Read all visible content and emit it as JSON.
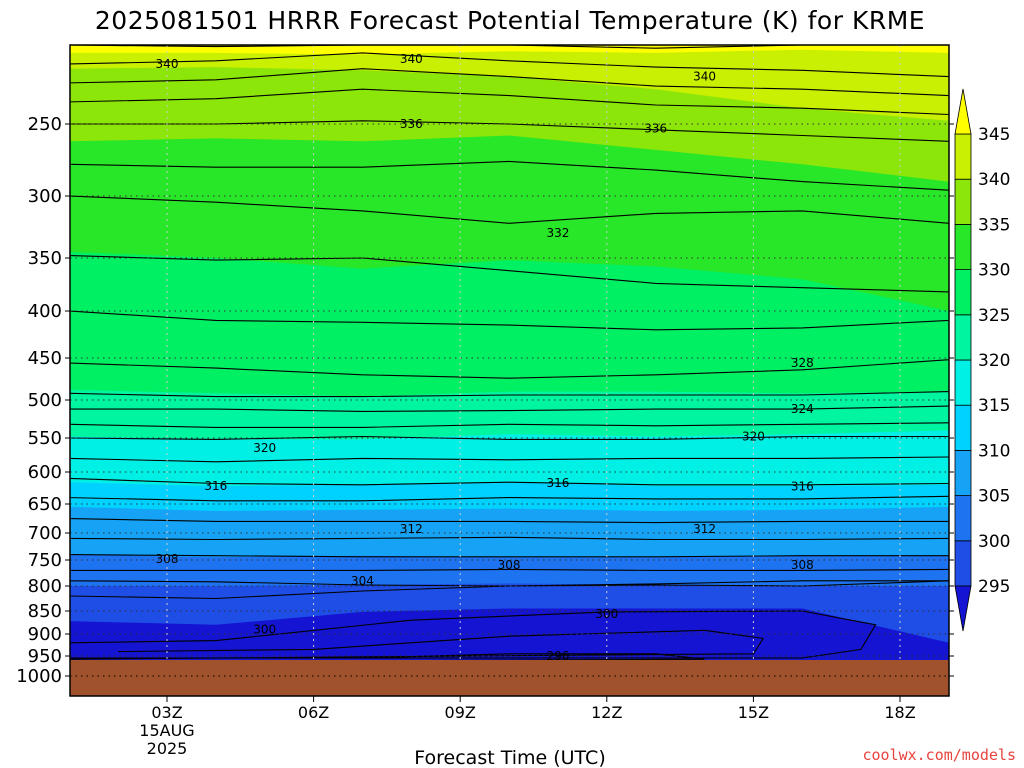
{
  "title": "2025081501 HRRR Forecast Potential Temperature (K) for KRME",
  "xlabel": "Forecast Time (UTC)",
  "credit": "coolwx.com/models",
  "colors": {
    "ground": "#a0522d",
    "bands": [
      "#1414d2",
      "#1e4ee6",
      "#1e74f0",
      "#16a2f5",
      "#00d2ff",
      "#00f0e6",
      "#00f5a0",
      "#00f064",
      "#28e628",
      "#8ce60a",
      "#c8f000",
      "#ffff00"
    ]
  },
  "chart_data": {
    "type": "contour",
    "title": "2025081501 HRRR Forecast Potential Temperature (K) for KRME",
    "xlabel": "Forecast Time (UTC)",
    "ylabel": "",
    "x_ticks": [
      "03Z",
      "06Z",
      "09Z",
      "12Z",
      "15Z",
      "18Z"
    ],
    "x_date_label": [
      "15AUG",
      "2025"
    ],
    "y_ticks": [
      250,
      300,
      350,
      400,
      450,
      500,
      550,
      600,
      650,
      700,
      750,
      800,
      850,
      900,
      950,
      1000
    ],
    "y_axis": "pressure (hPa), reversed",
    "colorbar": {
      "levels": [
        295,
        300,
        305,
        310,
        315,
        320,
        325,
        330,
        335,
        340,
        345
      ],
      "extend": "both"
    },
    "contour_interval": 2,
    "contour_labels": [
      {
        "value": 340,
        "pressure": 212,
        "time": "03Z"
      },
      {
        "value": 340,
        "pressure": 209,
        "time": "08Z"
      },
      {
        "value": 340,
        "pressure": 220,
        "time": "14Z"
      },
      {
        "value": 336,
        "pressure": 250,
        "time": "08Z"
      },
      {
        "value": 336,
        "pressure": 253,
        "time": "13Z"
      },
      {
        "value": 332,
        "pressure": 330,
        "time": "11Z"
      },
      {
        "value": 328,
        "pressure": 456,
        "time": "16Z"
      },
      {
        "value": 324,
        "pressure": 512,
        "time": "16Z"
      },
      {
        "value": 320,
        "pressure": 565,
        "time": "05Z"
      },
      {
        "value": 320,
        "pressure": 548,
        "time": "15Z"
      },
      {
        "value": 316,
        "pressure": 622,
        "time": "04Z"
      },
      {
        "value": 316,
        "pressure": 617,
        "time": "11Z"
      },
      {
        "value": 316,
        "pressure": 623,
        "time": "16Z"
      },
      {
        "value": 312,
        "pressure": 693,
        "time": "08Z"
      },
      {
        "value": 312,
        "pressure": 693,
        "time": "14Z"
      },
      {
        "value": 308,
        "pressure": 748,
        "time": "03Z"
      },
      {
        "value": 308,
        "pressure": 760,
        "time": "10Z"
      },
      {
        "value": 308,
        "pressure": 760,
        "time": "16Z"
      },
      {
        "value": 304,
        "pressure": 790,
        "time": "07Z"
      },
      {
        "value": 300,
        "pressure": 890,
        "time": "05Z"
      },
      {
        "value": 300,
        "pressure": 856,
        "time": "12Z"
      },
      {
        "value": 296,
        "pressure": 950,
        "time": "11Z"
      }
    ],
    "ground_pressure": 960
  }
}
